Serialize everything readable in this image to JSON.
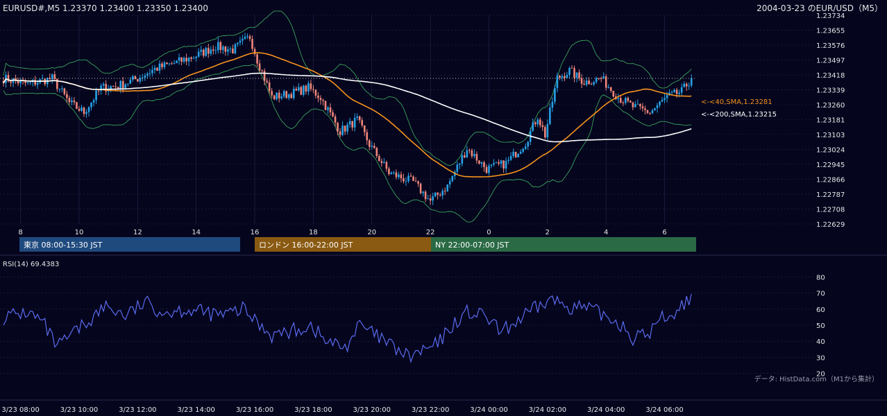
{
  "header": {
    "ohlc_text": "EURUSD#,M5 1.23370 1.23400 1.23350 1.23400",
    "date_title": "2004-03-23 のEUR/USD（M5）"
  },
  "colors": {
    "background": "#05051e",
    "grid": "#2a2a4e",
    "up_candle": "#27a2e6",
    "down_candle": "#f0877a",
    "sma40": "#f7941d",
    "sma200": "#ffffff",
    "bollinger": "#3aa35a",
    "rsi": "#5b6cf0",
    "tokyo": "#1f4a7e",
    "london": "#8a5a12",
    "ny": "#2a6a45"
  },
  "price_chart": {
    "y_ticks": [
      "1.23734",
      "1.23655",
      "1.23576",
      "1.23497",
      "1.23418",
      "1.23339",
      "1.23260",
      "1.23181",
      "1.23103",
      "1.23024",
      "1.22945",
      "1.22866",
      "1.22787",
      "1.22708",
      "1.22629"
    ],
    "x_ticks": [
      "8",
      "10",
      "12",
      "14",
      "16",
      "18",
      "20",
      "22",
      "0",
      "2",
      "4",
      "6"
    ],
    "last_price_line": 1.234,
    "sma40_label": "<-<40,SMA,1.23281",
    "sma200_label": "<-<200,SMA,1.23215"
  },
  "sessions": [
    {
      "label": "東京 08:00-15:30 JST"
    },
    {
      "label": "ロンドン 16:00-22:00 JST"
    },
    {
      "label": "NY 22:00-07:00 JST"
    }
  ],
  "rsi_panel": {
    "title": "RSI(14) 69.4383",
    "y_ticks": [
      "80",
      "70",
      "60",
      "50",
      "40",
      "30",
      "20"
    ],
    "credit": "データ: HistData.com（M1から集計）"
  },
  "time_axis": {
    "labels": [
      "3/23 08:00",
      "3/23 10:00",
      "3/23 12:00",
      "3/23 14:00",
      "3/23 16:00",
      "3/23 18:00",
      "3/23 20:00",
      "3/23 22:00",
      "3/24 00:00",
      "3/24 02:00",
      "3/24 04:00",
      "3/24 06:00"
    ]
  },
  "chart_data": {
    "type": "candlestick",
    "price_keypoints": [
      [
        0,
        1.234
      ],
      [
        10,
        1.2337
      ],
      [
        20,
        1.234
      ],
      [
        27,
        1.2327
      ],
      [
        33,
        1.2322
      ],
      [
        40,
        1.2335
      ],
      [
        47,
        1.2336
      ],
      [
        55,
        1.234
      ],
      [
        62,
        1.2345
      ],
      [
        70,
        1.2348
      ],
      [
        79,
        1.2352
      ],
      [
        87,
        1.2357
      ],
      [
        94,
        1.2355
      ],
      [
        101,
        1.2362
      ],
      [
        104,
        1.235
      ],
      [
        110,
        1.233
      ],
      [
        118,
        1.2332
      ],
      [
        125,
        1.2335
      ],
      [
        130,
        1.233
      ],
      [
        138,
        1.2312
      ],
      [
        145,
        1.2318
      ],
      [
        150,
        1.2305
      ],
      [
        158,
        1.229
      ],
      [
        168,
        1.2285
      ],
      [
        175,
        1.2275
      ],
      [
        182,
        1.2283
      ],
      [
        190,
        1.2303
      ],
      [
        198,
        1.2292
      ],
      [
        206,
        1.2295
      ],
      [
        214,
        1.2306
      ],
      [
        219,
        1.232
      ],
      [
        222,
        1.231
      ],
      [
        227,
        1.234
      ],
      [
        232,
        1.2344
      ],
      [
        238,
        1.2338
      ],
      [
        245,
        1.234
      ],
      [
        252,
        1.233
      ],
      [
        258,
        1.2325
      ],
      [
        265,
        1.2322
      ],
      [
        272,
        1.233
      ],
      [
        278,
        1.2333
      ],
      [
        282,
        1.234
      ]
    ],
    "rsi_keypoints": [
      [
        0,
        55
      ],
      [
        10,
        58
      ],
      [
        16,
        52
      ],
      [
        22,
        36
      ],
      [
        28,
        44
      ],
      [
        36,
        54
      ],
      [
        42,
        62
      ],
      [
        50,
        56
      ],
      [
        58,
        64
      ],
      [
        66,
        58
      ],
      [
        74,
        60
      ],
      [
        82,
        58
      ],
      [
        90,
        56
      ],
      [
        98,
        60
      ],
      [
        104,
        52
      ],
      [
        110,
        44
      ],
      [
        118,
        46
      ],
      [
        126,
        50
      ],
      [
        132,
        40
      ],
      [
        140,
        36
      ],
      [
        146,
        50
      ],
      [
        152,
        44
      ],
      [
        160,
        36
      ],
      [
        166,
        30
      ],
      [
        172,
        34
      ],
      [
        178,
        38
      ],
      [
        184,
        50
      ],
      [
        190,
        58
      ],
      [
        198,
        55
      ],
      [
        204,
        45
      ],
      [
        210,
        52
      ],
      [
        218,
        60
      ],
      [
        224,
        66
      ],
      [
        232,
        62
      ],
      [
        240,
        60
      ],
      [
        248,
        55
      ],
      [
        254,
        50
      ],
      [
        258,
        42
      ],
      [
        264,
        44
      ],
      [
        270,
        55
      ],
      [
        276,
        58
      ],
      [
        282,
        69.44
      ]
    ],
    "bar_count": 283
  }
}
